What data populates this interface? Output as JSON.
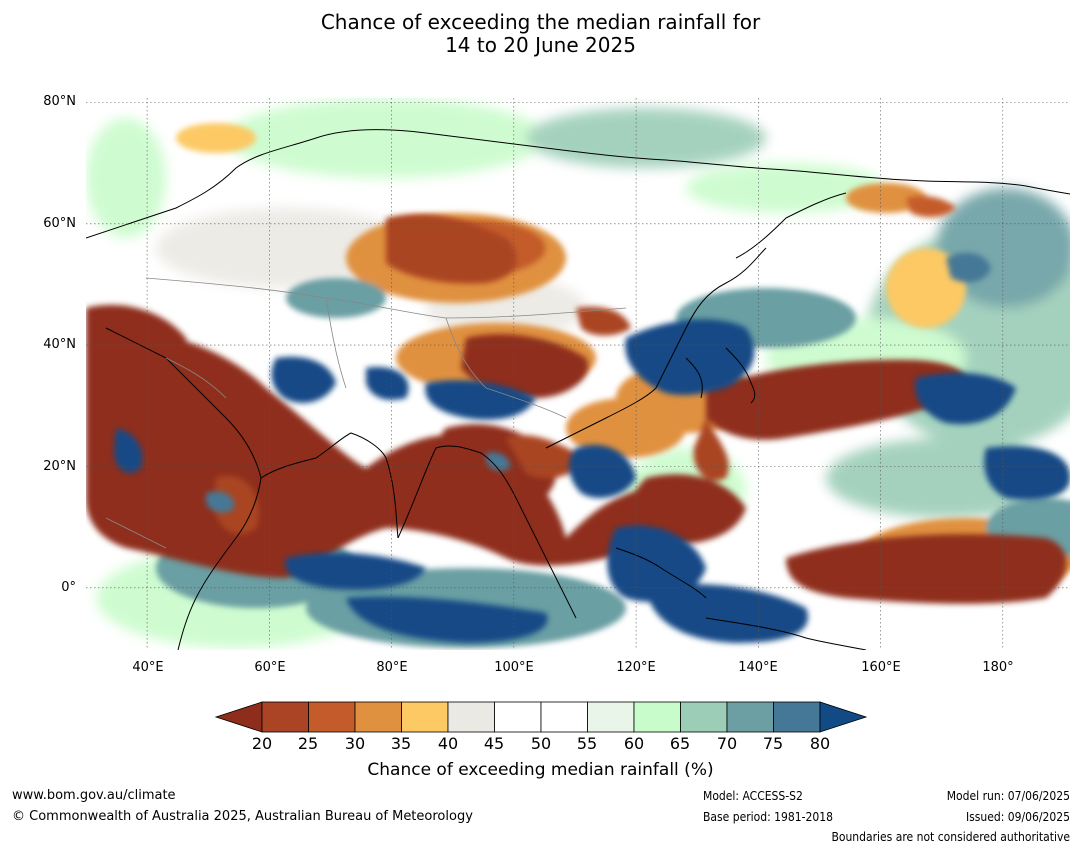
{
  "title_line1": "Chance of exceeding the median rainfall for",
  "title_line2": "14 to 20 June 2025",
  "lat_labels": [
    "80°N",
    "60°N",
    "40°N",
    "20°N",
    "0°"
  ],
  "lon_labels": [
    "40°E",
    "60°E",
    "80°E",
    "100°E",
    "120°E",
    "140°E",
    "160°E",
    "180°"
  ],
  "colorbar": {
    "ticks": [
      "20",
      "25",
      "30",
      "35",
      "40",
      "45",
      "50",
      "55",
      "60",
      "65",
      "70",
      "75",
      "80"
    ],
    "colors": [
      "#8f2d1c",
      "#aa4424",
      "#c45b2b",
      "#e0913f",
      "#fcc965",
      "#ebe9e4",
      "#ffffff",
      "#ffffff",
      "#e9f5e8",
      "#c9fccb",
      "#9bcdb7",
      "#6b9fa3",
      "#457896",
      "#124a86"
    ],
    "title": "Chance of exceeding median rainfall (%)"
  },
  "footer": {
    "website": "www.bom.gov.au/climate",
    "copyright": "© Commonwealth of Australia 2025, Australian Bureau of Meteorology",
    "model": "Model: ACCESS-S2",
    "base_period": "Base period: 1981-2018",
    "model_run": "Model run: 07/06/2025",
    "issued": "Issued: 09/06/2025",
    "disclaimer": "Boundaries are not considered authoritative"
  },
  "map_extent": {
    "lon": [
      30,
      191
    ],
    "lat": [
      -10,
      81
    ]
  }
}
